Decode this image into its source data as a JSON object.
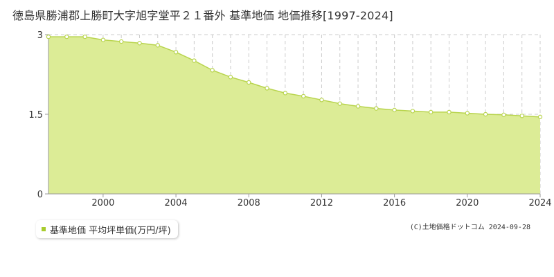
{
  "title": "徳島県勝浦郡上勝町大字旭字堂平２１番外 基準地価 地価推移[1997-2024]",
  "legend_label": "基準地価 平均坪単価(万円/坪)",
  "copyright": "(C)土地価格ドットコム 2024-09-28",
  "colors": {
    "fill": "#dcec96",
    "line": "#b8d44d",
    "marker_stroke": "#b8d44d",
    "legend_swatch": "#a8cc2e",
    "grid": "#cccccc",
    "axis": "#999999"
  },
  "chart_data": {
    "type": "area",
    "title": "徳島県勝浦郡上勝町大字旭字堂平２１番外 基準地価 地価推移[1997-2024]",
    "xlabel": "",
    "ylabel": "",
    "xlim": [
      1997,
      2024
    ],
    "ylim": [
      0,
      3
    ],
    "y_ticks": [
      {
        "value": 0,
        "label": "0"
      },
      {
        "value": 1.5,
        "label": "1.5"
      },
      {
        "value": 3,
        "label": "3"
      }
    ],
    "x_ticks": [
      {
        "value": 2000,
        "label": "2000"
      },
      {
        "value": 2004,
        "label": "2004"
      },
      {
        "value": 2008,
        "label": "2008"
      },
      {
        "value": 2012,
        "label": "2012"
      },
      {
        "value": 2016,
        "label": "2016"
      },
      {
        "value": 2020,
        "label": "2020"
      },
      {
        "value": 2024,
        "label": "2024"
      }
    ],
    "grid": true,
    "legend_position": "bottom-left",
    "series": [
      {
        "name": "基準地価 平均坪単価(万円/坪)",
        "x": [
          1997,
          1998,
          1999,
          2000,
          2001,
          2002,
          2003,
          2004,
          2005,
          2006,
          2007,
          2008,
          2009,
          2010,
          2011,
          2012,
          2013,
          2014,
          2015,
          2016,
          2017,
          2018,
          2019,
          2020,
          2021,
          2022,
          2023,
          2024
        ],
        "values": [
          2.96,
          2.96,
          2.96,
          2.9,
          2.87,
          2.84,
          2.8,
          2.67,
          2.51,
          2.33,
          2.2,
          2.1,
          1.99,
          1.9,
          1.84,
          1.77,
          1.7,
          1.65,
          1.61,
          1.58,
          1.56,
          1.54,
          1.54,
          1.52,
          1.5,
          1.49,
          1.47,
          1.45
        ]
      }
    ]
  }
}
